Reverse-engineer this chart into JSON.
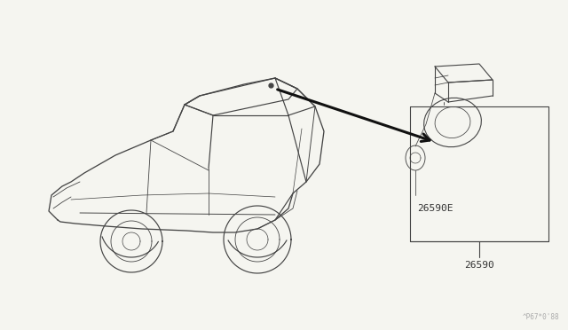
{
  "bg_color": "#f5f5f0",
  "line_color": "#555555",
  "car_color": "#444444",
  "arrow_color": "#111111",
  "label_26590E": "26590E",
  "label_26590": "26590",
  "watermark": "^P67*0'88",
  "figsize": [
    6.4,
    3.72
  ],
  "dpi": 100,
  "lw_car": 0.85,
  "lw_part": 0.8,
  "arrow_lw": 2.2
}
